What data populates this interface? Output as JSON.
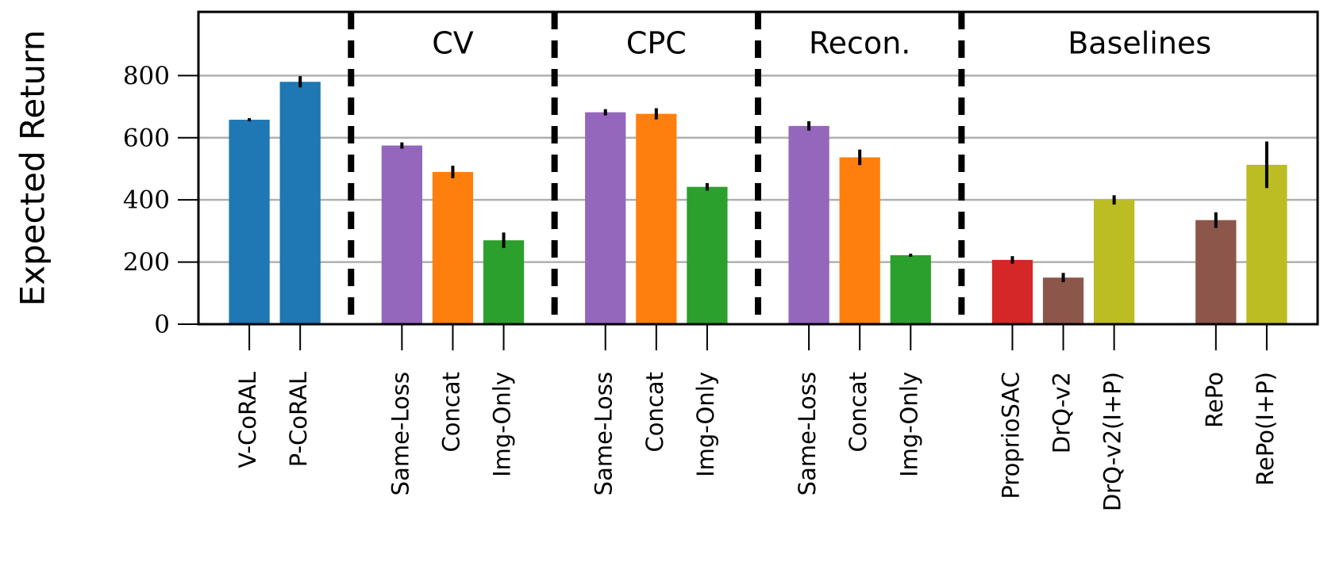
{
  "chart_data": {
    "type": "bar",
    "y_label": "Expected Return",
    "categories": [
      "V-CoRAL",
      "P-CoRAL",
      null,
      "Same-Loss",
      "Concat",
      "Img-Only",
      null,
      "Same-Loss",
      "Concat",
      "Img-Only",
      null,
      "Same-Loss",
      "Concat",
      "Img-Only",
      null,
      "ProprioSAC",
      "DrQ-v2",
      "DrQ-v2(I+P)",
      null,
      "RePo",
      "RePo(I+P)"
    ],
    "values": [
      658,
      780,
      null,
      575,
      490,
      270,
      null,
      682,
      677,
      442,
      null,
      638,
      537,
      222,
      null,
      207,
      150,
      400,
      null,
      335,
      513
    ],
    "errors": [
      5,
      18,
      null,
      10,
      20,
      25,
      null,
      10,
      18,
      12,
      null,
      15,
      25,
      5,
      null,
      12,
      15,
      15,
      null,
      25,
      75
    ],
    "colors": [
      "#1f77b4",
      "#1f77b4",
      null,
      "#9467bd",
      "#ff7f0e",
      "#2ca02c",
      null,
      "#9467bd",
      "#ff7f0e",
      "#2ca02c",
      null,
      "#9467bd",
      "#ff7f0e",
      "#2ca02c",
      null,
      "#d62728",
      "#8c564b",
      "#bcbd22",
      null,
      "#8c564b",
      "#bcbd22"
    ],
    "separators": [
      2,
      6,
      10,
      14
    ],
    "groups": [
      {
        "label": "CV",
        "start": 3,
        "end": 5
      },
      {
        "label": "CPC",
        "start": 7,
        "end": 9
      },
      {
        "label": "Recon.",
        "start": 11,
        "end": 13
      },
      {
        "label": "Baselines",
        "start": 15,
        "end": 20
      }
    ],
    "ylim": [
      0,
      1005
    ],
    "yticks": [
      0,
      200,
      400,
      600,
      800
    ],
    "grid": true
  }
}
